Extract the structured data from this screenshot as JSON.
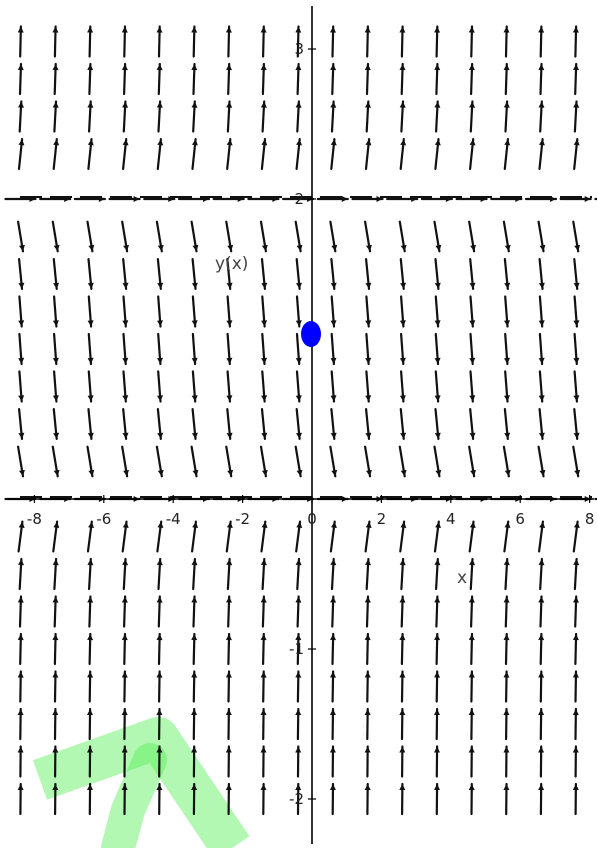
{
  "chart_data": {
    "type": "slope_field",
    "xlabel": "x",
    "ylabel": "y(x)",
    "xlim": [
      -9,
      9
    ],
    "ylim": [
      -2.2,
      3.3
    ],
    "x_ticks": [
      {
        "value": -8,
        "label": "-8"
      },
      {
        "value": -6,
        "label": "-6"
      },
      {
        "value": -4,
        "label": "-4"
      },
      {
        "value": -2,
        "label": "-2"
      },
      {
        "value": 0,
        "label": "0"
      },
      {
        "value": 2,
        "label": "2"
      },
      {
        "value": 4,
        "label": "4"
      },
      {
        "value": 6,
        "label": "6"
      },
      {
        "value": 8,
        "label": "8"
      }
    ],
    "y_ticks": [
      {
        "value": 3,
        "label": "3"
      },
      {
        "value": 2,
        "label": "2"
      },
      {
        "value": -1,
        "label": "-1"
      },
      {
        "value": -2,
        "label": "-2"
      }
    ],
    "equilibria": [
      0,
      2
    ],
    "initial_point": {
      "x": 0,
      "y": 1.1,
      "color": "#0000ff"
    },
    "field_rows_y": [
      3.05,
      2.8,
      2.55,
      2.3,
      2.0,
      1.75,
      1.5,
      1.25,
      1.0,
      0.75,
      0.5,
      0.25,
      0.0,
      -0.25,
      -0.5,
      -0.75,
      -1.0,
      -1.25,
      -1.5,
      -1.75,
      -2.0
    ],
    "field_cols_x": [
      -8.4,
      -7.4,
      -6.4,
      -5.4,
      -4.4,
      -3.4,
      -2.4,
      -1.4,
      -0.4,
      0.6,
      1.6,
      2.6,
      3.6,
      4.6,
      5.6,
      6.6,
      7.6,
      8.6
    ],
    "field_color": "#111111"
  },
  "watermark": {
    "color": "#55f055"
  }
}
